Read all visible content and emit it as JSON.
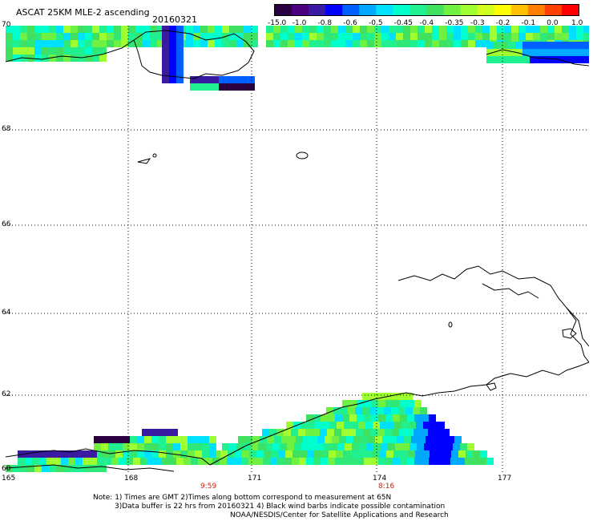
{
  "header": {
    "title": "ASCAT 25KM MLE-2 ascending",
    "date": "20160321"
  },
  "colorbar": {
    "colors": [
      "#2a0040",
      "#4b0082",
      "#3a1aa0",
      "#0000ff",
      "#0060ff",
      "#00a8ff",
      "#00e0ff",
      "#00ffcc",
      "#20f090",
      "#40e060",
      "#70f040",
      "#a0ff30",
      "#d0ff20",
      "#ffff00",
      "#ffc000",
      "#ff8000",
      "#ff4000",
      "#ff0000"
    ],
    "labels": [
      "-15.0",
      "-1.0",
      "-0.8",
      "-0.6",
      "-0.5",
      "-0.45",
      "-0.4",
      "-0.35",
      "-0.3",
      "-0.2",
      "-0.1",
      "0.0",
      "1.0"
    ]
  },
  "axes": {
    "lon_labels": [
      "165",
      "168",
      "171",
      "174",
      "177"
    ],
    "lat_labels": [
      "70",
      "68",
      "66",
      "64",
      "62",
      "60"
    ]
  },
  "times": [
    "9:59",
    "8:16"
  ],
  "notes": {
    "line1": "Note: 1) Times are GMT 2)Times along bottom correspond to measurement at 65N",
    "line2": "3)Data buffer is 22 hrs from 20160321 4) Black wind barbs indicate possible contamination",
    "line3": "NOAA/NESDIS/Center for Satellite Applications and Research"
  }
}
